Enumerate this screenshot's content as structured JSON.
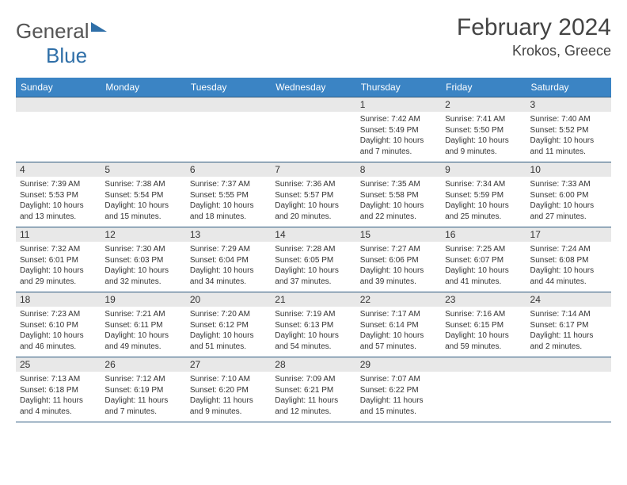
{
  "logo": {
    "text1": "General",
    "text2": "Blue"
  },
  "title": "February 2024",
  "subtitle": "Krokos, Greece",
  "colors": {
    "header_bg": "#3b84c4",
    "border": "#2d5a7f",
    "daybg": "#e8e8e8",
    "text": "#333"
  },
  "weekdays": [
    "Sunday",
    "Monday",
    "Tuesday",
    "Wednesday",
    "Thursday",
    "Friday",
    "Saturday"
  ],
  "weeks": [
    [
      null,
      null,
      null,
      null,
      {
        "n": "1",
        "sr": "Sunrise: 7:42 AM",
        "ss": "Sunset: 5:49 PM",
        "d1": "Daylight: 10 hours",
        "d2": "and 7 minutes."
      },
      {
        "n": "2",
        "sr": "Sunrise: 7:41 AM",
        "ss": "Sunset: 5:50 PM",
        "d1": "Daylight: 10 hours",
        "d2": "and 9 minutes."
      },
      {
        "n": "3",
        "sr": "Sunrise: 7:40 AM",
        "ss": "Sunset: 5:52 PM",
        "d1": "Daylight: 10 hours",
        "d2": "and 11 minutes."
      }
    ],
    [
      {
        "n": "4",
        "sr": "Sunrise: 7:39 AM",
        "ss": "Sunset: 5:53 PM",
        "d1": "Daylight: 10 hours",
        "d2": "and 13 minutes."
      },
      {
        "n": "5",
        "sr": "Sunrise: 7:38 AM",
        "ss": "Sunset: 5:54 PM",
        "d1": "Daylight: 10 hours",
        "d2": "and 15 minutes."
      },
      {
        "n": "6",
        "sr": "Sunrise: 7:37 AM",
        "ss": "Sunset: 5:55 PM",
        "d1": "Daylight: 10 hours",
        "d2": "and 18 minutes."
      },
      {
        "n": "7",
        "sr": "Sunrise: 7:36 AM",
        "ss": "Sunset: 5:57 PM",
        "d1": "Daylight: 10 hours",
        "d2": "and 20 minutes."
      },
      {
        "n": "8",
        "sr": "Sunrise: 7:35 AM",
        "ss": "Sunset: 5:58 PM",
        "d1": "Daylight: 10 hours",
        "d2": "and 22 minutes."
      },
      {
        "n": "9",
        "sr": "Sunrise: 7:34 AM",
        "ss": "Sunset: 5:59 PM",
        "d1": "Daylight: 10 hours",
        "d2": "and 25 minutes."
      },
      {
        "n": "10",
        "sr": "Sunrise: 7:33 AM",
        "ss": "Sunset: 6:00 PM",
        "d1": "Daylight: 10 hours",
        "d2": "and 27 minutes."
      }
    ],
    [
      {
        "n": "11",
        "sr": "Sunrise: 7:32 AM",
        "ss": "Sunset: 6:01 PM",
        "d1": "Daylight: 10 hours",
        "d2": "and 29 minutes."
      },
      {
        "n": "12",
        "sr": "Sunrise: 7:30 AM",
        "ss": "Sunset: 6:03 PM",
        "d1": "Daylight: 10 hours",
        "d2": "and 32 minutes."
      },
      {
        "n": "13",
        "sr": "Sunrise: 7:29 AM",
        "ss": "Sunset: 6:04 PM",
        "d1": "Daylight: 10 hours",
        "d2": "and 34 minutes."
      },
      {
        "n": "14",
        "sr": "Sunrise: 7:28 AM",
        "ss": "Sunset: 6:05 PM",
        "d1": "Daylight: 10 hours",
        "d2": "and 37 minutes."
      },
      {
        "n": "15",
        "sr": "Sunrise: 7:27 AM",
        "ss": "Sunset: 6:06 PM",
        "d1": "Daylight: 10 hours",
        "d2": "and 39 minutes."
      },
      {
        "n": "16",
        "sr": "Sunrise: 7:25 AM",
        "ss": "Sunset: 6:07 PM",
        "d1": "Daylight: 10 hours",
        "d2": "and 41 minutes."
      },
      {
        "n": "17",
        "sr": "Sunrise: 7:24 AM",
        "ss": "Sunset: 6:08 PM",
        "d1": "Daylight: 10 hours",
        "d2": "and 44 minutes."
      }
    ],
    [
      {
        "n": "18",
        "sr": "Sunrise: 7:23 AM",
        "ss": "Sunset: 6:10 PM",
        "d1": "Daylight: 10 hours",
        "d2": "and 46 minutes."
      },
      {
        "n": "19",
        "sr": "Sunrise: 7:21 AM",
        "ss": "Sunset: 6:11 PM",
        "d1": "Daylight: 10 hours",
        "d2": "and 49 minutes."
      },
      {
        "n": "20",
        "sr": "Sunrise: 7:20 AM",
        "ss": "Sunset: 6:12 PM",
        "d1": "Daylight: 10 hours",
        "d2": "and 51 minutes."
      },
      {
        "n": "21",
        "sr": "Sunrise: 7:19 AM",
        "ss": "Sunset: 6:13 PM",
        "d1": "Daylight: 10 hours",
        "d2": "and 54 minutes."
      },
      {
        "n": "22",
        "sr": "Sunrise: 7:17 AM",
        "ss": "Sunset: 6:14 PM",
        "d1": "Daylight: 10 hours",
        "d2": "and 57 minutes."
      },
      {
        "n": "23",
        "sr": "Sunrise: 7:16 AM",
        "ss": "Sunset: 6:15 PM",
        "d1": "Daylight: 10 hours",
        "d2": "and 59 minutes."
      },
      {
        "n": "24",
        "sr": "Sunrise: 7:14 AM",
        "ss": "Sunset: 6:17 PM",
        "d1": "Daylight: 11 hours",
        "d2": "and 2 minutes."
      }
    ],
    [
      {
        "n": "25",
        "sr": "Sunrise: 7:13 AM",
        "ss": "Sunset: 6:18 PM",
        "d1": "Daylight: 11 hours",
        "d2": "and 4 minutes."
      },
      {
        "n": "26",
        "sr": "Sunrise: 7:12 AM",
        "ss": "Sunset: 6:19 PM",
        "d1": "Daylight: 11 hours",
        "d2": "and 7 minutes."
      },
      {
        "n": "27",
        "sr": "Sunrise: 7:10 AM",
        "ss": "Sunset: 6:20 PM",
        "d1": "Daylight: 11 hours",
        "d2": "and 9 minutes."
      },
      {
        "n": "28",
        "sr": "Sunrise: 7:09 AM",
        "ss": "Sunset: 6:21 PM",
        "d1": "Daylight: 11 hours",
        "d2": "and 12 minutes."
      },
      {
        "n": "29",
        "sr": "Sunrise: 7:07 AM",
        "ss": "Sunset: 6:22 PM",
        "d1": "Daylight: 11 hours",
        "d2": "and 15 minutes."
      },
      null,
      null
    ]
  ]
}
